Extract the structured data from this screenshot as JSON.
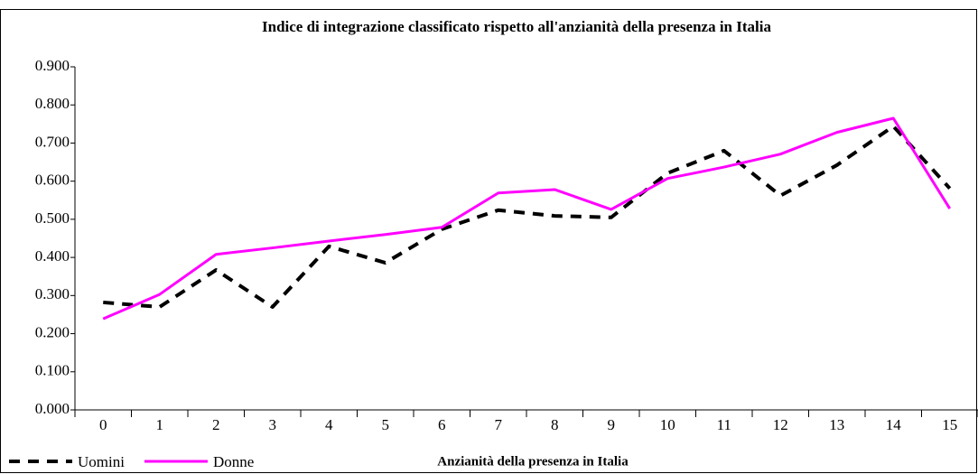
{
  "chart_data": {
    "type": "line",
    "title": "Indice di integrazione classificato rispetto all'anzianità della presenza in Italia",
    "x_label": "Anzianità della presenza in Italia",
    "categories": [
      "0",
      "1",
      "2",
      "3",
      "4",
      "5",
      "6",
      "7",
      "8",
      "9",
      "10",
      "11",
      "12",
      "13",
      "14",
      "15"
    ],
    "series": [
      {
        "name": "Uomini",
        "color": "#000000",
        "dash": true,
        "values": [
          0.282,
          0.27,
          0.367,
          0.27,
          0.429,
          0.386,
          0.474,
          0.524,
          0.509,
          0.505,
          0.621,
          0.68,
          0.562,
          0.642,
          0.744,
          0.581
        ]
      },
      {
        "name": "Donne",
        "color": "#ff00ff",
        "dash": false,
        "values": [
          0.239,
          0.303,
          0.408,
          0.425,
          0.443,
          0.46,
          0.479,
          0.569,
          0.578,
          0.526,
          0.607,
          0.637,
          0.671,
          0.728,
          0.765,
          0.528
        ]
      }
    ],
    "ylim": [
      0,
      0.9
    ],
    "yticks": [
      {
        "value": 0,
        "label": "0.000"
      },
      {
        "value": 0.1,
        "label": "0.100"
      },
      {
        "value": 0.2,
        "label": "0.200"
      },
      {
        "value": 0.3,
        "label": "0.300"
      },
      {
        "value": 0.4,
        "label": "0.400"
      },
      {
        "value": 0.5,
        "label": "0.500"
      },
      {
        "value": 0.6,
        "label": "0.600"
      },
      {
        "value": 0.7,
        "label": "0.700"
      },
      {
        "value": 0.8,
        "label": "0.800"
      },
      {
        "value": 0.9,
        "label": "0.900"
      }
    ],
    "legend": "bottom-left",
    "grid": false
  }
}
